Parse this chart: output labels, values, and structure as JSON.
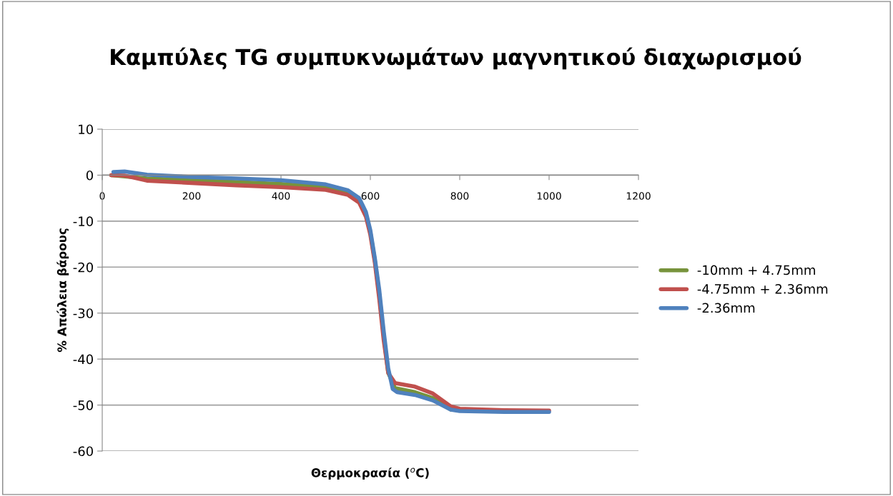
{
  "chart_data": {
    "type": "line",
    "title": "Καμπύλες TG συμπυκνωμάτων μαγνητικού διαχωρισμού",
    "xlabel": "Θερμοκρασία ($^{o}$C)",
    "ylabel": "% Απώλεια βάρους",
    "xlim": [
      0,
      1200
    ],
    "xticks": [
      0,
      200,
      400,
      600,
      800,
      1000,
      1200
    ],
    "ylim": [
      -60,
      10
    ],
    "yticks": [
      -60,
      -50,
      -40,
      -30,
      -20,
      -10,
      0,
      10
    ],
    "grid": "y",
    "legend": "right",
    "marker": "none",
    "line_style": "solid",
    "series": [
      {
        "name": "-10mm + 4.75mm",
        "color": "#77933c",
        "x": [
          20,
          100,
          200,
          300,
          400,
          500,
          550,
          575,
          590,
          600,
          610,
          620,
          630,
          640,
          655,
          700,
          740,
          780,
          800
        ],
        "values": [
          0,
          -0.7,
          -1.1,
          -1.5,
          -1.9,
          -2.6,
          -3.8,
          -5.5,
          -8.5,
          -12.5,
          -18.5,
          -26,
          -35,
          -43,
          -46.3,
          -47.2,
          -48.5,
          -51,
          -51.1
        ]
      },
      {
        "name": "-4.75mm + 2.36mm",
        "color": "#c0504d",
        "x": [
          20,
          50,
          100,
          200,
          300,
          400,
          500,
          550,
          575,
          590,
          600,
          610,
          620,
          630,
          640,
          655,
          700,
          740,
          780,
          800,
          900,
          1000
        ],
        "values": [
          0,
          -0.1,
          -1.2,
          -1.7,
          -2.2,
          -2.6,
          -3.2,
          -4.3,
          -6,
          -9,
          -13,
          -19,
          -27,
          -36,
          -43,
          -45.2,
          -46,
          -47.5,
          -50.3,
          -50.8,
          -51.1,
          -51.2
        ]
      },
      {
        "name": "-2.36mm",
        "color": "#4f81bd",
        "x": [
          25,
          50,
          100,
          200,
          300,
          400,
          500,
          550,
          575,
          590,
          600,
          610,
          620,
          630,
          640,
          650,
          660,
          700,
          740,
          780,
          800,
          900,
          1000
        ],
        "values": [
          0.7,
          0.8,
          0.1,
          -0.4,
          -0.7,
          -1.1,
          -2.0,
          -3.3,
          -5,
          -8,
          -12,
          -18,
          -25,
          -34,
          -42,
          -46.5,
          -47.2,
          -47.8,
          -49,
          -51,
          -51.3,
          -51.5,
          -51.5
        ]
      }
    ]
  }
}
